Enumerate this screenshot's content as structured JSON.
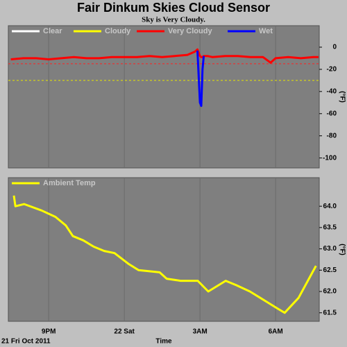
{
  "chart_data": [
    {
      "type": "line",
      "title": "Fair Dinkum Skies Cloud Sensor",
      "subtitle": "Sky is Very Cloudy.",
      "ylabel": "(°F)",
      "x": [
        19.5,
        20,
        20.5,
        21,
        21.5,
        22,
        22.5,
        23,
        23.5,
        24,
        24.5,
        25,
        25.5,
        26,
        26.5,
        26.8,
        26.9,
        27.0,
        27.05,
        27.1,
        27.15,
        27.3,
        27.5,
        28,
        28.5,
        29,
        29.5,
        29.8,
        30,
        30.5,
        31,
        31.5,
        31.7
      ],
      "xlim": [
        19.4,
        31.73
      ],
      "ylim": [
        -109,
        19.4
      ],
      "yticks": [
        0,
        -20,
        -40,
        -60,
        -80,
        -100
      ],
      "grid": "x",
      "thresholds": [
        {
          "value": -15,
          "color": "#ff2020"
        },
        {
          "value": -30,
          "color": "#e8e800"
        }
      ],
      "series": [
        {
          "name": "Clear",
          "color": "#ffffff",
          "values": [
            null,
            null,
            null,
            null,
            null,
            null,
            null,
            null,
            null,
            null,
            null,
            null,
            null,
            null,
            null,
            null,
            null,
            null,
            null,
            null,
            null,
            null,
            null,
            null,
            null,
            null,
            null,
            null,
            null,
            null,
            null,
            null,
            null
          ]
        },
        {
          "name": "Cloudy",
          "color": "#ffff00",
          "values": [
            null,
            null,
            null,
            null,
            null,
            null,
            null,
            null,
            null,
            null,
            null,
            null,
            null,
            null,
            null,
            null,
            null,
            null,
            null,
            null,
            null,
            null,
            null,
            null,
            null,
            null,
            null,
            null,
            null,
            null,
            null,
            null,
            null
          ]
        },
        {
          "name": "Very Cloudy",
          "color": "#ff0000",
          "values": [
            -11,
            -10,
            -10,
            -11,
            -10,
            -9,
            -10,
            -10,
            -9,
            -9,
            -9,
            -8,
            -9,
            -8,
            -7,
            -4,
            -2,
            -8,
            -9,
            -9,
            -8,
            -8,
            -9,
            -8,
            -8,
            -9,
            -9,
            -14,
            -10,
            -9,
            -10,
            -9,
            -9
          ]
        },
        {
          "name": "Wet",
          "color": "#0000ff",
          "values": [
            null,
            null,
            null,
            null,
            null,
            null,
            null,
            null,
            null,
            null,
            null,
            null,
            null,
            null,
            null,
            null,
            -3,
            -50,
            -53,
            -20,
            -8,
            null,
            null,
            null,
            null,
            null,
            null,
            null,
            null,
            null,
            null,
            null,
            null
          ]
        }
      ]
    },
    {
      "type": "line",
      "ylabel": "(°F)",
      "xlabel": "Time",
      "date": "21 Fri Oct 2011",
      "x": [
        19.62,
        19.68,
        20.03,
        20.72,
        21.27,
        21.68,
        21.96,
        22.37,
        22.79,
        23.2,
        23.61,
        24.16,
        24.57,
        25.4,
        25.68,
        26.23,
        26.91,
        27.33,
        28.02,
        28.43,
        28.98,
        29.53,
        30.08,
        30.36,
        30.91,
        31.46,
        31.6
      ],
      "xlim": [
        19.4,
        31.73
      ],
      "xticks": [
        {
          "value": 21,
          "label": "9PM"
        },
        {
          "value": 24,
          "label": "22 Sat"
        },
        {
          "value": 27,
          "label": "3AM"
        },
        {
          "value": 30,
          "label": "6AM"
        }
      ],
      "ylim": [
        61.3,
        64.67
      ],
      "yticks": [
        {
          "value": 64,
          "label": "64.0"
        },
        63.5,
        {
          "value": 63,
          "label": "63.0"
        },
        62.5,
        {
          "value": 62,
          "label": "62.0"
        },
        61.5
      ],
      "grid": "x",
      "series": [
        {
          "name": "Ambient Temp",
          "color": "#ffff00",
          "values": [
            64.25,
            64.0,
            64.05,
            63.9,
            63.75,
            63.55,
            63.3,
            63.2,
            63.05,
            62.95,
            62.9,
            62.65,
            62.5,
            62.45,
            62.3,
            62.25,
            62.25,
            62.0,
            62.25,
            62.15,
            62.0,
            61.8,
            61.6,
            61.5,
            61.85,
            62.45,
            62.6
          ]
        }
      ]
    }
  ]
}
